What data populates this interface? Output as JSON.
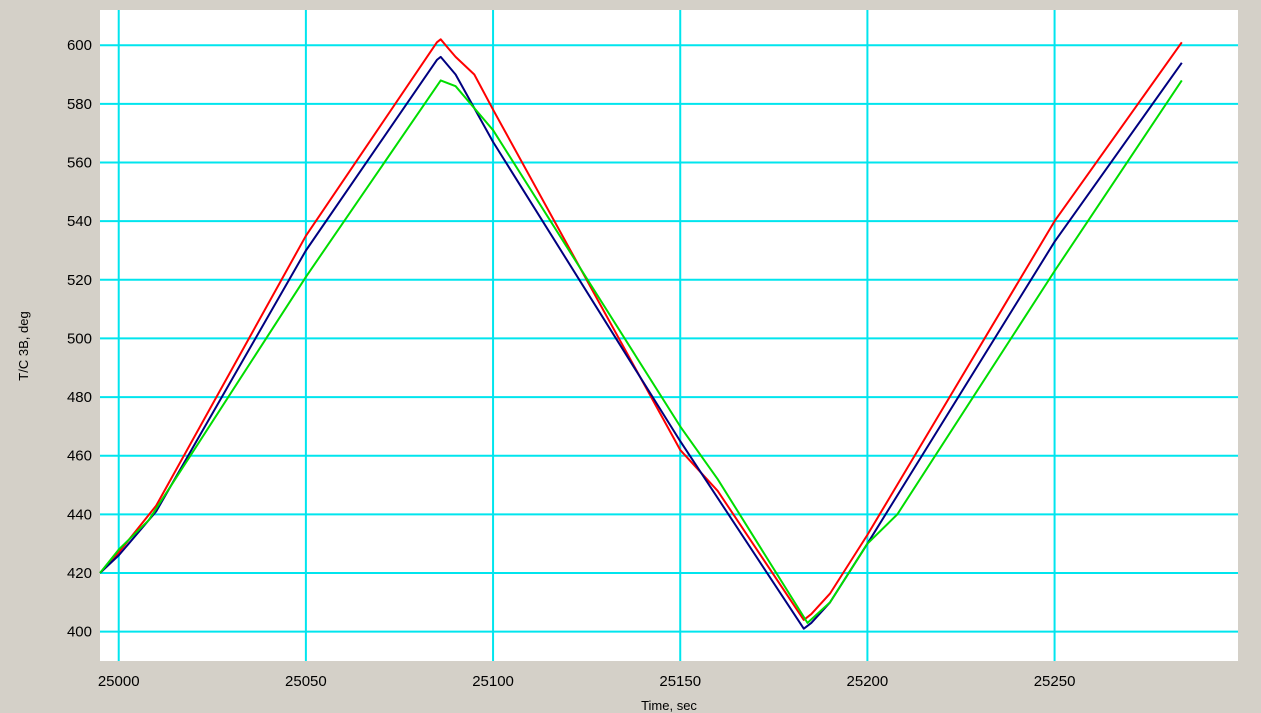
{
  "chart_data": {
    "type": "line",
    "title": "",
    "xlabel": "Time, sec",
    "ylabel": "T/C 3B, deg",
    "xlim": [
      24995,
      25299
    ],
    "ylim": [
      390,
      612
    ],
    "x_ticks": [
      25000,
      25050,
      25100,
      25150,
      25200,
      25250
    ],
    "y_ticks": [
      400,
      420,
      440,
      460,
      480,
      500,
      520,
      540,
      560,
      580,
      600
    ],
    "grid": true,
    "legend": "none",
    "series": [
      {
        "color": "#ff0000",
        "x": [
          24995,
          25000,
          25010,
          25050,
          25085,
          25086,
          25088,
          25090,
          25095,
          25100,
          25150,
          25160,
          25183,
          25185,
          25190,
          25200,
          25250,
          25284
        ],
        "y": [
          420,
          427,
          443,
          535,
          601,
          602,
          599,
          596,
          590,
          578,
          462,
          448,
          404,
          406,
          413,
          433,
          540,
          601
        ]
      },
      {
        "color": "#000080",
        "x": [
          24995,
          25000,
          25010,
          25050,
          25085,
          25086,
          25090,
          25100,
          25150,
          25183,
          25185,
          25190,
          25200,
          25250,
          25284
        ],
        "y": [
          420,
          426,
          441,
          530,
          595,
          596,
          590,
          567,
          465,
          401,
          403,
          410,
          430,
          533,
          594
        ]
      },
      {
        "color": "#00dd00",
        "x": [
          24995,
          25000,
          25008,
          25050,
          25086,
          25090,
          25100,
          25150,
          25160,
          25184,
          25190,
          25200,
          25208,
          25250,
          25284
        ],
        "y": [
          420,
          428,
          438,
          521,
          588,
          586,
          571,
          470,
          452,
          403,
          410,
          430,
          440,
          523,
          588
        ]
      }
    ]
  }
}
